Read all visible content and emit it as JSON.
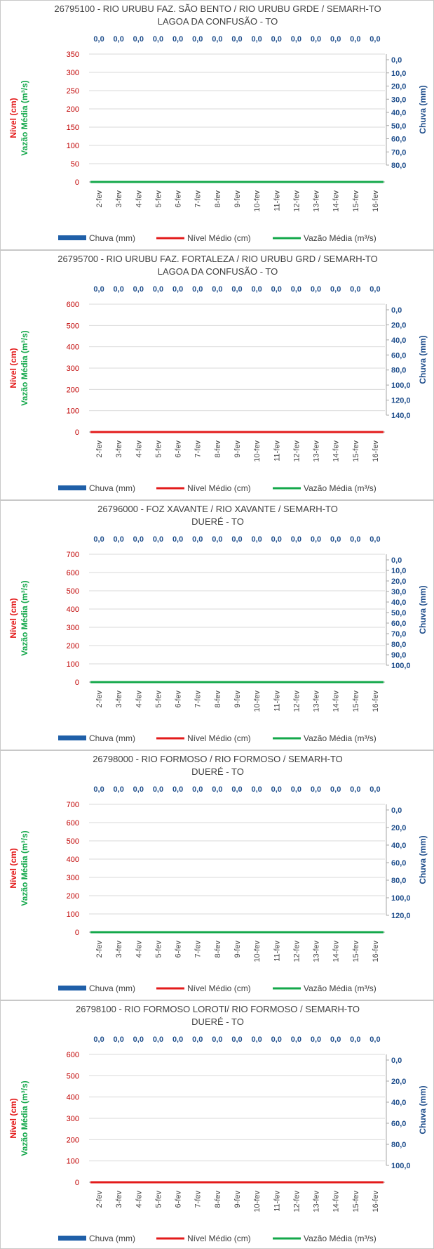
{
  "chart_data": [
    {
      "type": "bar",
      "title": "26795100 - RIO URUBU FAZ. SÃO BENTO / RIO URUBU GRDE / SEMARH-TO",
      "subtitle": "LAGOA DA CONFUSÃO - TO",
      "categories": [
        "2-fev",
        "3-fev",
        "4-fev",
        "5-fev",
        "6-fev",
        "7-fev",
        "8-fev",
        "9-fev",
        "10-fev",
        "11-fev",
        "12-fev",
        "13-fev",
        "14-fev",
        "15-fev",
        "16-fev"
      ],
      "data_labels": [
        "0,0",
        "0,0",
        "0,0",
        "0,0",
        "0,0",
        "0,0",
        "0,0",
        "0,0",
        "0,0",
        "0,0",
        "0,0",
        "0,0",
        "0,0",
        "0,0",
        "0,0"
      ],
      "y_left_label_1": "Nível (cm)",
      "y_left_label_2": "Vazão Média (m³/s)",
      "y_right_label": "Chuva (mm)",
      "y_left_ticks": [
        "0",
        "50",
        "100",
        "150",
        "200",
        "250",
        "300",
        "350"
      ],
      "y_left_lim": [
        0,
        350
      ],
      "y_right_ticks": [
        "0,0",
        "10,0",
        "20,0",
        "30,0",
        "40,0",
        "50,0",
        "60,0",
        "70,0",
        "80,0"
      ],
      "y_right_lim": [
        0,
        80
      ],
      "y_right_reversed": true,
      "visible_line": "Vazão Média (m³/s)",
      "series": [
        {
          "name": "Chuva (mm)",
          "kind": "bar",
          "axis": "right",
          "color": "#1f5fa8",
          "values": [
            0,
            0,
            0,
            0,
            0,
            0,
            0,
            0,
            0,
            0,
            0,
            0,
            0,
            0,
            0
          ]
        },
        {
          "name": "Nível Médio (cm)",
          "kind": "line",
          "axis": "left",
          "color": "#e31b1b",
          "values": [
            0,
            0,
            0,
            0,
            0,
            0,
            0,
            0,
            0,
            0,
            0,
            0,
            0,
            0,
            0
          ]
        },
        {
          "name": "Vazão Média (m³/s)",
          "kind": "line",
          "axis": "left",
          "color": "#14a84b",
          "values": [
            0,
            0,
            0,
            0,
            0,
            0,
            0,
            0,
            0,
            0,
            0,
            0,
            0,
            0,
            0
          ]
        }
      ],
      "legend": [
        "Chuva (mm)",
        "Nível Médio (cm)",
        "Vazão Média (m³/s)"
      ],
      "legend_position": "bottom",
      "grid": true
    },
    {
      "type": "bar",
      "title": "26795700 - RIO URUBU FAZ. FORTALEZA / RIO URUBU GRD / SEMARH-TO",
      "subtitle": "LAGOA DA CONFUSÃO - TO",
      "categories": [
        "2-fev",
        "3-fev",
        "4-fev",
        "5-fev",
        "6-fev",
        "7-fev",
        "8-fev",
        "9-fev",
        "10-fev",
        "11-fev",
        "12-fev",
        "13-fev",
        "14-fev",
        "15-fev",
        "16-fev"
      ],
      "data_labels": [
        "0,0",
        "0,0",
        "0,0",
        "0,0",
        "0,0",
        "0,0",
        "0,0",
        "0,0",
        "0,0",
        "0,0",
        "0,0",
        "0,0",
        "0,0",
        "0,0",
        "0,0"
      ],
      "y_left_label_1": "Nível (cm)",
      "y_left_label_2": "Vazão Média (m³/s)",
      "y_right_label": "Chuva (mm)",
      "y_left_ticks": [
        "0",
        "100",
        "200",
        "300",
        "400",
        "500",
        "600"
      ],
      "y_left_lim": [
        0,
        600
      ],
      "y_right_ticks": [
        "0,0",
        "20,0",
        "40,0",
        "60,0",
        "80,0",
        "100,0",
        "120,0",
        "140,0"
      ],
      "y_right_lim": [
        0,
        140
      ],
      "y_right_reversed": true,
      "visible_line": "Nível Médio (cm)",
      "series": [
        {
          "name": "Chuva (mm)",
          "kind": "bar",
          "axis": "right",
          "color": "#1f5fa8",
          "values": [
            0,
            0,
            0,
            0,
            0,
            0,
            0,
            0,
            0,
            0,
            0,
            0,
            0,
            0,
            0
          ]
        },
        {
          "name": "Nível Médio (cm)",
          "kind": "line",
          "axis": "left",
          "color": "#e31b1b",
          "values": [
            0,
            0,
            0,
            0,
            0,
            0,
            0,
            0,
            0,
            0,
            0,
            0,
            0,
            0,
            0
          ]
        },
        {
          "name": "Vazão Média (m³/s)",
          "kind": "line",
          "axis": "left",
          "color": "#14a84b",
          "values": [
            0,
            0,
            0,
            0,
            0,
            0,
            0,
            0,
            0,
            0,
            0,
            0,
            0,
            0,
            0
          ]
        }
      ],
      "legend": [
        "Chuva (mm)",
        "Nível Médio (cm)",
        "Vazão Média (m³/s)"
      ],
      "legend_position": "bottom",
      "grid": true
    },
    {
      "type": "bar",
      "title": "26796000 - FOZ XAVANTE / RIO XAVANTE / SEMARH-TO",
      "subtitle": "DUERÉ - TO",
      "categories": [
        "2-fev",
        "3-fev",
        "4-fev",
        "5-fev",
        "6-fev",
        "7-fev",
        "8-fev",
        "9-fev",
        "10-fev",
        "11-fev",
        "12-fev",
        "13-fev",
        "14-fev",
        "15-fev",
        "16-fev"
      ],
      "data_labels": [
        "0,0",
        "0,0",
        "0,0",
        "0,0",
        "0,0",
        "0,0",
        "0,0",
        "0,0",
        "0,0",
        "0,0",
        "0,0",
        "0,0",
        "0,0",
        "0,0",
        "0,0"
      ],
      "y_left_label_1": "Nível (cm)",
      "y_left_label_2": "Vazão Média (m³/s)",
      "y_right_label": "Chuva (mm)",
      "y_left_ticks": [
        "0",
        "100",
        "200",
        "300",
        "400",
        "500",
        "600",
        "700"
      ],
      "y_left_lim": [
        0,
        700
      ],
      "y_right_ticks": [
        "0,0",
        "10,0",
        "20,0",
        "30,0",
        "40,0",
        "50,0",
        "60,0",
        "70,0",
        "80,0",
        "90,0",
        "100,0"
      ],
      "y_right_lim": [
        0,
        100
      ],
      "y_right_reversed": true,
      "visible_line": "Vazão Média (m³/s)",
      "series": [
        {
          "name": "Chuva (mm)",
          "kind": "bar",
          "axis": "right",
          "color": "#1f5fa8",
          "values": [
            0,
            0,
            0,
            0,
            0,
            0,
            0,
            0,
            0,
            0,
            0,
            0,
            0,
            0,
            0
          ]
        },
        {
          "name": "Nível Médio (cm)",
          "kind": "line",
          "axis": "left",
          "color": "#e31b1b",
          "values": [
            0,
            0,
            0,
            0,
            0,
            0,
            0,
            0,
            0,
            0,
            0,
            0,
            0,
            0,
            0
          ]
        },
        {
          "name": "Vazão Média (m³/s)",
          "kind": "line",
          "axis": "left",
          "color": "#14a84b",
          "values": [
            0,
            0,
            0,
            0,
            0,
            0,
            0,
            0,
            0,
            0,
            0,
            0,
            0,
            0,
            0
          ]
        }
      ],
      "legend": [
        "Chuva (mm)",
        "Nível Médio (cm)",
        "Vazão Média (m³/s)"
      ],
      "legend_position": "bottom",
      "grid": true
    },
    {
      "type": "bar",
      "title": "26798000 - RIO FORMOSO / RIO FORMOSO / SEMARH-TO",
      "subtitle": "DUERÉ - TO",
      "categories": [
        "2-fev",
        "3-fev",
        "4-fev",
        "5-fev",
        "6-fev",
        "7-fev",
        "8-fev",
        "9-fev",
        "10-fev",
        "11-fev",
        "12-fev",
        "13-fev",
        "14-fev",
        "15-fev",
        "16-fev"
      ],
      "data_labels": [
        "0,0",
        "0,0",
        "0,0",
        "0,0",
        "0,0",
        "0,0",
        "0,0",
        "0,0",
        "0,0",
        "0,0",
        "0,0",
        "0,0",
        "0,0",
        "0,0",
        "0,0"
      ],
      "y_left_label_1": "Nível (cm)",
      "y_left_label_2": "Vazão Média (m³/s)",
      "y_right_label": "Chuva (mm)",
      "y_left_ticks": [
        "0",
        "100",
        "200",
        "300",
        "400",
        "500",
        "600",
        "700"
      ],
      "y_left_lim": [
        0,
        700
      ],
      "y_right_ticks": [
        "0,0",
        "20,0",
        "40,0",
        "60,0",
        "80,0",
        "100,0",
        "120,0"
      ],
      "y_right_lim": [
        0,
        120
      ],
      "y_right_reversed": true,
      "visible_line": "Vazão Média (m³/s)",
      "series": [
        {
          "name": "Chuva (mm)",
          "kind": "bar",
          "axis": "right",
          "color": "#1f5fa8",
          "values": [
            0,
            0,
            0,
            0,
            0,
            0,
            0,
            0,
            0,
            0,
            0,
            0,
            0,
            0,
            0
          ]
        },
        {
          "name": "Nível Médio (cm)",
          "kind": "line",
          "axis": "left",
          "color": "#e31b1b",
          "values": [
            0,
            0,
            0,
            0,
            0,
            0,
            0,
            0,
            0,
            0,
            0,
            0,
            0,
            0,
            0
          ]
        },
        {
          "name": "Vazão Média (m³/s)",
          "kind": "line",
          "axis": "left",
          "color": "#14a84b",
          "values": [
            0,
            0,
            0,
            0,
            0,
            0,
            0,
            0,
            0,
            0,
            0,
            0,
            0,
            0,
            0
          ]
        }
      ],
      "legend": [
        "Chuva (mm)",
        "Nível Médio (cm)",
        "Vazão Média (m³/s)"
      ],
      "legend_position": "bottom",
      "grid": true
    },
    {
      "type": "bar",
      "title": "26798100 - RIO FORMOSO LOROTI/ RIO FORMOSO / SEMARH-TO",
      "subtitle": "DUERÉ - TO",
      "categories": [
        "2-fev",
        "3-fev",
        "4-fev",
        "5-fev",
        "6-fev",
        "7-fev",
        "8-fev",
        "9-fev",
        "10-fev",
        "11-fev",
        "12-fev",
        "13-fev",
        "14-fev",
        "15-fev",
        "16-fev"
      ],
      "data_labels": [
        "0,0",
        "0,0",
        "0,0",
        "0,0",
        "0,0",
        "0,0",
        "0,0",
        "0,0",
        "0,0",
        "0,0",
        "0,0",
        "0,0",
        "0,0",
        "0,0",
        "0,0"
      ],
      "y_left_label_1": "Nível (cm)",
      "y_left_label_2": "Vazão Média (m³/s)",
      "y_right_label": "Chuva (mm)",
      "y_left_ticks": [
        "0",
        "100",
        "200",
        "300",
        "400",
        "500",
        "600"
      ],
      "y_left_lim": [
        0,
        600
      ],
      "y_right_ticks": [
        "0,0",
        "20,0",
        "40,0",
        "60,0",
        "80,0",
        "100,0"
      ],
      "y_right_lim": [
        0,
        100
      ],
      "y_right_reversed": true,
      "visible_line": "Nível Médio (cm)",
      "series": [
        {
          "name": "Chuva (mm)",
          "kind": "bar",
          "axis": "right",
          "color": "#1f5fa8",
          "values": [
            0,
            0,
            0,
            0,
            0,
            0,
            0,
            0,
            0,
            0,
            0,
            0,
            0,
            0,
            0
          ]
        },
        {
          "name": "Nível Médio (cm)",
          "kind": "line",
          "axis": "left",
          "color": "#e31b1b",
          "values": [
            0,
            0,
            0,
            0,
            0,
            0,
            0,
            0,
            0,
            0,
            0,
            0,
            0,
            0,
            0
          ]
        },
        {
          "name": "Vazão Média (m³/s)",
          "kind": "line",
          "axis": "left",
          "color": "#14a84b",
          "values": [
            0,
            0,
            0,
            0,
            0,
            0,
            0,
            0,
            0,
            0,
            0,
            0,
            0,
            0,
            0
          ]
        }
      ],
      "legend": [
        "Chuva (mm)",
        "Nível Médio (cm)",
        "Vazão Média (m³/s)"
      ],
      "legend_position": "bottom",
      "grid": true
    }
  ]
}
